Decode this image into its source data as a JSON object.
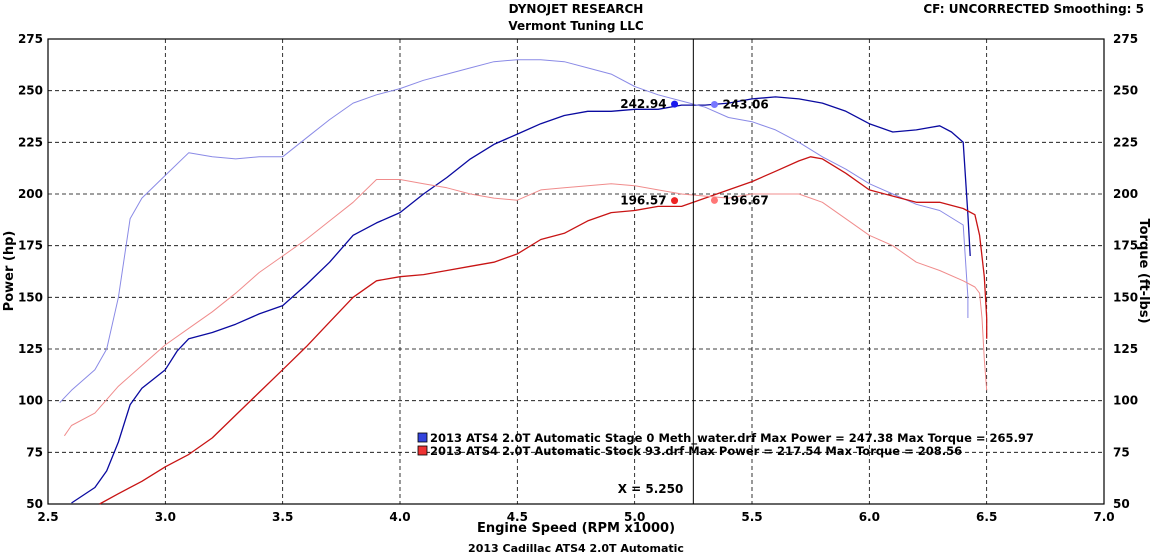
{
  "chart_data": {
    "type": "line",
    "title": "DYNOJET RESEARCH",
    "subtitle": "Vermont Tuning LLC",
    "header_right": "CF: UNCORRECTED  Smoothing: 5",
    "footer": "2013 Cadillac ATS4 2.0T Automatic",
    "xlabel": "Engine Speed (RPM x1000)",
    "ylabel_left": "Power (hp)",
    "ylabel_right": "Torque (ft-lbs)",
    "xlim": [
      2.5,
      7.0
    ],
    "ylim": [
      50,
      275
    ],
    "xticks": [
      "2.5",
      "3.0",
      "3.5",
      "4.0",
      "4.5",
      "5.0",
      "5.5",
      "6.0",
      "6.5",
      "7.0"
    ],
    "yticks": [
      "50",
      "75",
      "100",
      "125",
      "150",
      "175",
      "200",
      "225",
      "250",
      "275"
    ],
    "grid": true,
    "cursor": {
      "x": 5.25,
      "label": "X = 5.250"
    },
    "legend": [
      {
        "text": "2013 ATS4 2.0T Automatic Stage 0 Meth_water.drf Max Power = 247.38     Max Torque = 265.97",
        "color": "#3344dd"
      },
      {
        "text": "2013 ATS4 2.0T Automatic Stock 93.drf Max Power = 217.54     Max Torque = 208.56",
        "color": "#ee3333"
      }
    ],
    "markers": [
      {
        "x": 5.17,
        "y": 243.5,
        "label": "242.94",
        "color": "#1a1aee",
        "side": "left"
      },
      {
        "x": 5.34,
        "y": 243.3,
        "label": "243.06",
        "color": "#7777ff",
        "side": "right"
      },
      {
        "x": 5.17,
        "y": 196.8,
        "label": "196.57",
        "color": "#ee2222",
        "side": "left"
      },
      {
        "x": 5.34,
        "y": 196.9,
        "label": "196.67",
        "color": "#ff7777",
        "side": "right"
      }
    ],
    "series": [
      {
        "color": "#0a0aa0",
        "width": 1.3,
        "points": [
          [
            2.6,
            50.5
          ],
          [
            2.7,
            58
          ],
          [
            2.75,
            66
          ],
          [
            2.8,
            80
          ],
          [
            2.85,
            98
          ],
          [
            2.9,
            106
          ],
          [
            3.0,
            115
          ],
          [
            3.05,
            124
          ],
          [
            3.1,
            130
          ],
          [
            3.2,
            133
          ],
          [
            3.3,
            137
          ],
          [
            3.4,
            142
          ],
          [
            3.5,
            146
          ],
          [
            3.6,
            156
          ],
          [
            3.7,
            167
          ],
          [
            3.8,
            180
          ],
          [
            3.9,
            186
          ],
          [
            4.0,
            191
          ],
          [
            4.1,
            200
          ],
          [
            4.2,
            208
          ],
          [
            4.3,
            217
          ],
          [
            4.4,
            224
          ],
          [
            4.5,
            229
          ],
          [
            4.6,
            234
          ],
          [
            4.7,
            238
          ],
          [
            4.8,
            240
          ],
          [
            4.9,
            240
          ],
          [
            5.0,
            241
          ],
          [
            5.1,
            241
          ],
          [
            5.2,
            243
          ],
          [
            5.3,
            243
          ],
          [
            5.4,
            244
          ],
          [
            5.5,
            246
          ],
          [
            5.6,
            247
          ],
          [
            5.7,
            246
          ],
          [
            5.8,
            244
          ],
          [
            5.9,
            240
          ],
          [
            6.0,
            234
          ],
          [
            6.1,
            230
          ],
          [
            6.2,
            231
          ],
          [
            6.3,
            233
          ],
          [
            6.35,
            230
          ],
          [
            6.4,
            225
          ],
          [
            6.42,
            190
          ],
          [
            6.43,
            170
          ]
        ]
      },
      {
        "color": "#8a8ae6",
        "width": 1.0,
        "points": [
          [
            2.55,
            99
          ],
          [
            2.6,
            105
          ],
          [
            2.7,
            115
          ],
          [
            2.75,
            125
          ],
          [
            2.8,
            150
          ],
          [
            2.85,
            188
          ],
          [
            2.9,
            198
          ],
          [
            3.0,
            209
          ],
          [
            3.1,
            220
          ],
          [
            3.2,
            218
          ],
          [
            3.3,
            217
          ],
          [
            3.4,
            218
          ],
          [
            3.5,
            218
          ],
          [
            3.6,
            227
          ],
          [
            3.7,
            236
          ],
          [
            3.8,
            244
          ],
          [
            3.9,
            248
          ],
          [
            4.0,
            251
          ],
          [
            4.1,
            255
          ],
          [
            4.2,
            258
          ],
          [
            4.3,
            261
          ],
          [
            4.4,
            264
          ],
          [
            4.5,
            265
          ],
          [
            4.6,
            265
          ],
          [
            4.7,
            264
          ],
          [
            4.8,
            261
          ],
          [
            4.9,
            258
          ],
          [
            5.0,
            252
          ],
          [
            5.1,
            248
          ],
          [
            5.2,
            245
          ],
          [
            5.3,
            242
          ],
          [
            5.4,
            237
          ],
          [
            5.5,
            235
          ],
          [
            5.6,
            231
          ],
          [
            5.7,
            225
          ],
          [
            5.8,
            218
          ],
          [
            5.9,
            212
          ],
          [
            6.0,
            205
          ],
          [
            6.1,
            200
          ],
          [
            6.2,
            195
          ],
          [
            6.3,
            192
          ],
          [
            6.4,
            185
          ],
          [
            6.42,
            150
          ],
          [
            6.42,
            140
          ]
        ]
      },
      {
        "color": "#c81414",
        "width": 1.3,
        "points": [
          [
            2.72,
            50
          ],
          [
            2.8,
            55
          ],
          [
            2.9,
            61
          ],
          [
            3.0,
            68
          ],
          [
            3.1,
            74
          ],
          [
            3.2,
            82
          ],
          [
            3.3,
            93
          ],
          [
            3.4,
            104
          ],
          [
            3.5,
            115
          ],
          [
            3.6,
            126
          ],
          [
            3.7,
            138
          ],
          [
            3.8,
            150
          ],
          [
            3.9,
            158
          ],
          [
            4.0,
            160
          ],
          [
            4.1,
            161
          ],
          [
            4.2,
            163
          ],
          [
            4.3,
            165
          ],
          [
            4.4,
            167
          ],
          [
            4.5,
            171
          ],
          [
            4.6,
            178
          ],
          [
            4.7,
            181
          ],
          [
            4.8,
            187
          ],
          [
            4.9,
            191
          ],
          [
            5.0,
            192
          ],
          [
            5.1,
            194
          ],
          [
            5.2,
            194
          ],
          [
            5.3,
            198
          ],
          [
            5.4,
            202
          ],
          [
            5.5,
            206
          ],
          [
            5.6,
            211
          ],
          [
            5.7,
            216
          ],
          [
            5.75,
            218
          ],
          [
            5.8,
            217
          ],
          [
            5.9,
            210
          ],
          [
            6.0,
            202
          ],
          [
            6.1,
            199
          ],
          [
            6.2,
            196
          ],
          [
            6.3,
            196
          ],
          [
            6.4,
            193
          ],
          [
            6.45,
            190
          ],
          [
            6.47,
            180
          ],
          [
            6.49,
            160
          ],
          [
            6.5,
            140
          ],
          [
            6.5,
            130
          ]
        ]
      },
      {
        "color": "#f08c8c",
        "width": 1.0,
        "points": [
          [
            2.57,
            83
          ],
          [
            2.6,
            88
          ],
          [
            2.7,
            94
          ],
          [
            2.8,
            107
          ],
          [
            2.9,
            117
          ],
          [
            3.0,
            127
          ],
          [
            3.1,
            135
          ],
          [
            3.2,
            143
          ],
          [
            3.3,
            152
          ],
          [
            3.4,
            162
          ],
          [
            3.5,
            170
          ],
          [
            3.6,
            178
          ],
          [
            3.7,
            187
          ],
          [
            3.8,
            196
          ],
          [
            3.9,
            207
          ],
          [
            4.0,
            207
          ],
          [
            4.1,
            205
          ],
          [
            4.2,
            203
          ],
          [
            4.3,
            200
          ],
          [
            4.4,
            198
          ],
          [
            4.5,
            197
          ],
          [
            4.6,
            202
          ],
          [
            4.7,
            203
          ],
          [
            4.8,
            204
          ],
          [
            4.9,
            205
          ],
          [
            5.0,
            204
          ],
          [
            5.1,
            202
          ],
          [
            5.2,
            200
          ],
          [
            5.3,
            199
          ],
          [
            5.4,
            198
          ],
          [
            5.5,
            200
          ],
          [
            5.6,
            200
          ],
          [
            5.7,
            200
          ],
          [
            5.8,
            196
          ],
          [
            5.9,
            188
          ],
          [
            6.0,
            180
          ],
          [
            6.1,
            175
          ],
          [
            6.2,
            167
          ],
          [
            6.3,
            163
          ],
          [
            6.4,
            158
          ],
          [
            6.45,
            155
          ],
          [
            6.47,
            152
          ],
          [
            6.48,
            140
          ],
          [
            6.49,
            120
          ],
          [
            6.5,
            105
          ]
        ]
      }
    ]
  }
}
